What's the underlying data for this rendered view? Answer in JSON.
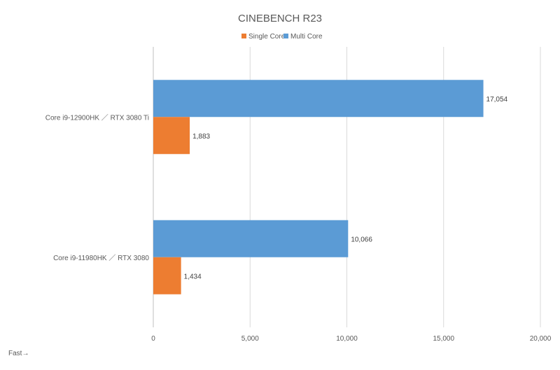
{
  "chart_data": {
    "type": "bar",
    "orientation": "horizontal",
    "title": "CINEBENCH R23",
    "categories": [
      "Core i9-12900HK ／ RTX 3080 Ti",
      "Core i9-11980HK ／ RTX 3080"
    ],
    "series": [
      {
        "name": "Single Core",
        "color": "#ED7D31",
        "values": [
          1883,
          1434
        ],
        "labels": [
          "1,883",
          "1,434"
        ]
      },
      {
        "name": "Multi Core",
        "color": "#5B9BD5",
        "values": [
          17054,
          10066
        ],
        "labels": [
          "17,054",
          "10,066"
        ]
      }
    ],
    "xlim": [
      0,
      20000
    ],
    "xticks": [
      0,
      5000,
      10000,
      15000,
      20000
    ],
    "xtick_labels": [
      "0",
      "5,000",
      "10,000",
      "15,000",
      "20,000"
    ],
    "grid": true,
    "legend_position": "top-center",
    "annotation": "Fast→"
  }
}
